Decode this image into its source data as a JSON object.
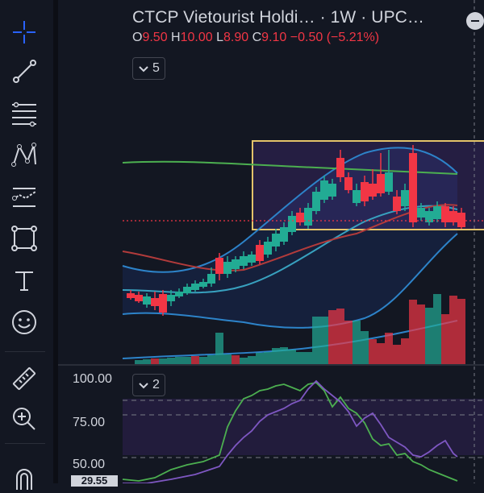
{
  "colors": {
    "background": "#131722",
    "accent": "#2962ff",
    "up": "#22ab94",
    "down": "#f23645",
    "text": "#d1d4dc"
  },
  "toolbar": {
    "tools": [
      {
        "name": "crosshair",
        "icon": "crosshair-icon",
        "active": true
      },
      {
        "name": "trend-line",
        "icon": "trend-line-icon"
      },
      {
        "name": "fib-retracement",
        "icon": "fib-retracement-icon"
      },
      {
        "name": "pattern",
        "icon": "xabcd-pattern-icon"
      },
      {
        "name": "prediction",
        "icon": "forecast-icon"
      },
      {
        "name": "geometric-shapes",
        "icon": "rectangle-shapes-icon"
      },
      {
        "name": "text",
        "icon": "text-icon"
      },
      {
        "name": "icons",
        "icon": "smiley-icon"
      },
      {
        "name": "measure",
        "icon": "ruler-icon"
      },
      {
        "name": "zoom-in",
        "icon": "zoom-in-icon"
      },
      {
        "name": "magnet",
        "icon": "magnet-icon"
      }
    ]
  },
  "legend": {
    "symbol": "CTCP Vietourist Holdi…",
    "interval": "· 1W · UPC…",
    "o_label": "O",
    "o_value": "9.50",
    "h_label": "H",
    "h_value": "10.00",
    "l_label": "L",
    "l_value": "8.90",
    "c_label": "C",
    "c_value": "9.10",
    "change": "−0.50 (−5.21%)"
  },
  "price_pane": {
    "indicators_collapsed_count": "5"
  },
  "oscillator_pane": {
    "indicators_collapsed_count": "2",
    "axis_labels": [
      "100.00",
      "75.00",
      "50.00"
    ],
    "cursor_value": "29.55"
  }
}
